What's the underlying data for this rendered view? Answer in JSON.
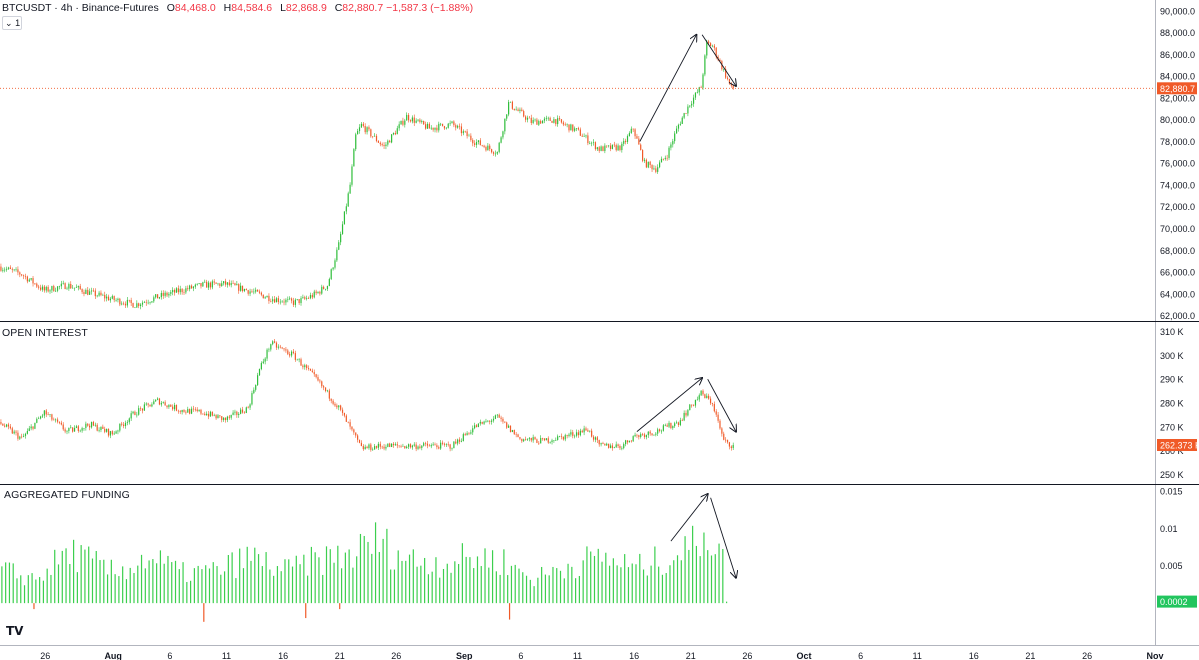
{
  "header": {
    "symbol": "BTCUSDT · 4h · Binance-Futures",
    "o_label": "O",
    "o_value": "84,468.0",
    "h_label": "H",
    "h_value": "84,584.6",
    "l_label": "L",
    "l_value": "82,868.9",
    "c_label": "C",
    "c_value": "82,880.7",
    "change": "−1,587.3 (−1.88%)",
    "interval_button": "1"
  },
  "panes": {
    "price": {
      "title": "",
      "last_label": "82,880.7"
    },
    "open_interest": {
      "title": "OPEN INTEREST",
      "last_label": "262.373 K"
    },
    "funding": {
      "title": "AGGREGATED FUNDING",
      "last_label": "0.0002"
    }
  },
  "logo_text": "TV",
  "colors": {
    "up": "#2ebd3a",
    "down": "#f05a28",
    "funding_bar": "#3ccf4e",
    "last_price_tag": "#f05a28",
    "last_funding_tag": "#22c55e",
    "dotted_line": "#f05a28"
  },
  "chart_data": [
    {
      "type": "candlestick",
      "title": "BTCUSDT · 4h · Binance-Futures",
      "ylim": [
        61500,
        91000
      ],
      "yticks": [
        "62,000.0",
        "64,000.0",
        "66,000.0",
        "68,000.0",
        "70,000.0",
        "72,000.0",
        "74,000.0",
        "76,000.0",
        "78,000.0",
        "80,000.0",
        "82,000.0",
        "84,000.0",
        "86,000.0",
        "88,000.0",
        "90,000.0"
      ],
      "ytick_values": [
        62000,
        64000,
        66000,
        68000,
        70000,
        72000,
        74000,
        76000,
        78000,
        80000,
        82000,
        84000,
        86000,
        88000,
        90000
      ],
      "xlim": [
        "2025-07-22",
        "2025-11-01"
      ],
      "trend_anchors": [
        [
          "2025-07-22",
          66500
        ],
        [
          "2025-07-24",
          65800
        ],
        [
          "2025-07-26",
          64300
        ],
        [
          "2025-07-28",
          64800
        ],
        [
          "2025-07-30",
          64100
        ],
        [
          "2025-08-01",
          63500
        ],
        [
          "2025-08-03",
          63000
        ],
        [
          "2025-08-05",
          63700
        ],
        [
          "2025-08-07",
          64300
        ],
        [
          "2025-08-09",
          64800
        ],
        [
          "2025-08-11",
          64900
        ],
        [
          "2025-08-13",
          64300
        ],
        [
          "2025-08-15",
          63600
        ],
        [
          "2025-08-17",
          63200
        ],
        [
          "2025-08-18",
          63500
        ],
        [
          "2025-08-19",
          64000
        ],
        [
          "2025-08-20",
          64800
        ],
        [
          "2025-08-21",
          68500
        ],
        [
          "2025-08-22",
          74000
        ],
        [
          "2025-08-22T12",
          78500
        ],
        [
          "2025-08-23",
          79500
        ],
        [
          "2025-08-25",
          77500
        ],
        [
          "2025-08-27",
          80300
        ],
        [
          "2025-08-29",
          79200
        ],
        [
          "2025-08-31",
          79600
        ],
        [
          "2025-09-02",
          78000
        ],
        [
          "2025-09-04",
          77000
        ],
        [
          "2025-09-05",
          81500
        ],
        [
          "2025-09-07",
          79800
        ],
        [
          "2025-09-09",
          80000
        ],
        [
          "2025-09-11",
          79000
        ],
        [
          "2025-09-13",
          77300
        ],
        [
          "2025-09-15",
          77500
        ],
        [
          "2025-09-16",
          79200
        ],
        [
          "2025-09-17",
          76000
        ],
        [
          "2025-09-18",
          75500
        ],
        [
          "2025-09-19",
          76800
        ],
        [
          "2025-09-20",
          79500
        ],
        [
          "2025-09-21",
          81500
        ],
        [
          "2025-09-22",
          83000
        ],
        [
          "2025-09-22T12",
          87000
        ],
        [
          "2025-09-23",
          86800
        ],
        [
          "2025-09-24",
          84500
        ],
        [
          "2025-09-24T16",
          82880.7
        ]
      ],
      "last_value": 82880.7
    },
    {
      "type": "candlestick",
      "title": "OPEN INTEREST",
      "ylim": [
        246000,
        314000
      ],
      "yticks": [
        "250 K",
        "260 K",
        "270 K",
        "280 K",
        "290 K",
        "300 K",
        "310 K"
      ],
      "ytick_values": [
        250000,
        260000,
        270000,
        280000,
        290000,
        300000,
        310000
      ],
      "trend_anchors": [
        [
          "2025-07-22",
          272000
        ],
        [
          "2025-07-24",
          265000
        ],
        [
          "2025-07-26",
          276000
        ],
        [
          "2025-07-28",
          268000
        ],
        [
          "2025-07-30",
          271000
        ],
        [
          "2025-08-01",
          267000
        ],
        [
          "2025-08-03",
          276000
        ],
        [
          "2025-08-05",
          281000
        ],
        [
          "2025-08-07",
          277000
        ],
        [
          "2025-08-09",
          276000
        ],
        [
          "2025-08-11",
          273000
        ],
        [
          "2025-08-13",
          278000
        ],
        [
          "2025-08-14",
          294000
        ],
        [
          "2025-08-15",
          305000
        ],
        [
          "2025-08-17",
          300000
        ],
        [
          "2025-08-19",
          290000
        ],
        [
          "2025-08-21",
          278000
        ],
        [
          "2025-08-23",
          261000
        ],
        [
          "2025-08-25",
          262000
        ],
        [
          "2025-08-27",
          262000
        ],
        [
          "2025-08-29",
          262000
        ],
        [
          "2025-08-31",
          262000
        ],
        [
          "2025-09-02",
          270000
        ],
        [
          "2025-09-04",
          274000
        ],
        [
          "2025-09-06",
          265000
        ],
        [
          "2025-09-08",
          264000
        ],
        [
          "2025-09-10",
          266000
        ],
        [
          "2025-09-12",
          269000
        ],
        [
          "2025-09-13",
          262000
        ],
        [
          "2025-09-15",
          262000
        ],
        [
          "2025-09-16",
          266000
        ],
        [
          "2025-09-18",
          268000
        ],
        [
          "2025-09-20",
          272000
        ],
        [
          "2025-09-21",
          278000
        ],
        [
          "2025-09-22",
          284000
        ],
        [
          "2025-09-23",
          280000
        ],
        [
          "2025-09-24",
          264000
        ],
        [
          "2025-09-24T16",
          262373
        ]
      ],
      "last_value": 262373
    },
    {
      "type": "bar",
      "title": "AGGREGATED FUNDING",
      "ylim": [
        -0.0056,
        0.0158
      ],
      "yticks": [
        "0.005",
        "0.01",
        "0.015"
      ],
      "ytick_values": [
        0.005,
        0.01,
        0.015
      ],
      "envelope": [
        [
          "2025-07-22",
          0.006
        ],
        [
          "2025-07-25",
          0.0045
        ],
        [
          "2025-07-28",
          0.0095
        ],
        [
          "2025-08-01",
          0.0055
        ],
        [
          "2025-08-04",
          0.0085
        ],
        [
          "2025-08-07",
          0.0055
        ],
        [
          "2025-08-10",
          0.006
        ],
        [
          "2025-08-13",
          0.0085
        ],
        [
          "2025-08-16",
          0.006
        ],
        [
          "2025-08-19",
          0.008
        ],
        [
          "2025-08-22",
          0.009
        ],
        [
          "2025-08-24",
          0.0115
        ],
        [
          "2025-08-27",
          0.008
        ],
        [
          "2025-08-30",
          0.0075
        ],
        [
          "2025-09-02",
          0.0085
        ],
        [
          "2025-09-04",
          0.008
        ],
        [
          "2025-09-07",
          0.0045
        ],
        [
          "2025-09-10",
          0.007
        ],
        [
          "2025-09-13",
          0.0085
        ],
        [
          "2025-09-16",
          0.0065
        ],
        [
          "2025-09-19",
          0.0085
        ],
        [
          "2025-09-21",
          0.0105
        ],
        [
          "2025-09-22",
          0.014
        ],
        [
          "2025-09-23",
          0.011
        ],
        [
          "2025-09-24",
          0.006
        ]
      ],
      "negative_spikes": [
        [
          "2025-07-25",
          -0.0008
        ],
        [
          "2025-08-09",
          -0.0025
        ],
        [
          "2025-08-18",
          -0.002
        ],
        [
          "2025-08-21",
          -0.0008
        ],
        [
          "2025-09-05",
          -0.0022
        ]
      ],
      "last_value": 0.0002
    }
  ],
  "x_axis": {
    "tick_labels": [
      "26",
      "Aug",
      "6",
      "11",
      "16",
      "21",
      "26",
      "Sep",
      "6",
      "11",
      "16",
      "21",
      "26",
      "Oct",
      "6",
      "11",
      "16",
      "21",
      "26",
      "Nov"
    ],
    "tick_dates": [
      "2025-07-26",
      "2025-08-01",
      "2025-08-06",
      "2025-08-11",
      "2025-08-16",
      "2025-08-21",
      "2025-08-26",
      "2025-09-01",
      "2025-09-06",
      "2025-09-11",
      "2025-09-16",
      "2025-09-21",
      "2025-09-26",
      "2025-10-01",
      "2025-10-06",
      "2025-10-11",
      "2025-10-16",
      "2025-10-21",
      "2025-10-26",
      "2025-11-01"
    ],
    "bold_labels": [
      "Aug",
      "Sep",
      "Oct",
      "Nov"
    ]
  },
  "annotations": [
    {
      "pane": 0,
      "from": [
        "2025-09-16T12",
        78000
      ],
      "to": [
        "2025-09-21T12",
        87800
      ]
    },
    {
      "pane": 0,
      "from": [
        "2025-09-22",
        87800
      ],
      "to": [
        "2025-09-25",
        83100
      ]
    },
    {
      "pane": 1,
      "from": [
        "2025-09-16T06",
        268000
      ],
      "to": [
        "2025-09-22",
        290500
      ]
    },
    {
      "pane": 1,
      "from": [
        "2025-09-22T12",
        290000
      ],
      "to": [
        "2025-09-25",
        268000
      ]
    },
    {
      "pane": 2,
      "from": [
        "2025-09-19T06",
        0.0083
      ],
      "to": [
        "2025-09-22T12",
        0.0146
      ]
    },
    {
      "pane": 2,
      "from": [
        "2025-09-22T18",
        0.0141
      ],
      "to": [
        "2025-09-25",
        0.0034
      ]
    }
  ]
}
